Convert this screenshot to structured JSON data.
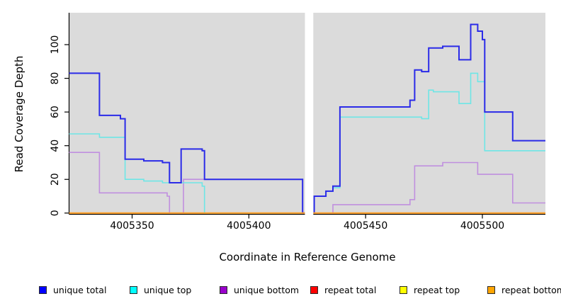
{
  "figure": {
    "x_axis_title": "Coordinate in Reference Genome",
    "y_axis_title": "Read Coverage Depth"
  },
  "legend": {
    "position": "bottom",
    "items": [
      {
        "label": "unique total",
        "color": "#0000FF"
      },
      {
        "label": "unique top",
        "color": "#00FFFF"
      },
      {
        "label": "unique bottom",
        "color": "#9900CC"
      },
      {
        "label": "repeat total",
        "color": "#FF0000"
      },
      {
        "label": "repeat top",
        "color": "#FFFF00"
      },
      {
        "label": "repeat bottom",
        "color": "#FFA500"
      }
    ]
  },
  "chart_data": {
    "type": "line",
    "subtype": "step",
    "title": "",
    "xlabel": "Coordinate in Reference Genome",
    "ylabel": "Read Coverage Depth",
    "xlim": [
      4005323,
      4005527
    ],
    "ylim": [
      0,
      118.3
    ],
    "x_ticks": [
      4005350,
      4005400,
      4005450,
      4005500
    ],
    "x_tick_labels": [
      "4005350",
      "4005400",
      "4005450",
      "4005500"
    ],
    "y_ticks": [
      0,
      20,
      40,
      60,
      80,
      100
    ],
    "y_tick_labels": [
      "0",
      "20",
      "40",
      "60",
      "80",
      "100"
    ],
    "plot_background": "#DBDBDB",
    "grid": false,
    "no_data_gap": {
      "from": 4005424,
      "to": 4005427.6
    },
    "series": [
      {
        "name": "unique total",
        "line_color": "#2B2BE8",
        "start_value": 83,
        "steps": [
          [
            4005336,
            58
          ],
          [
            4005345,
            56
          ],
          [
            4005347,
            32
          ],
          [
            4005355,
            31
          ],
          [
            4005363,
            30
          ],
          [
            4005366,
            18
          ],
          [
            4005371,
            38
          ],
          [
            4005380,
            37
          ],
          [
            4005381,
            20
          ],
          [
            4005423,
            0
          ],
          [
            4005428,
            10
          ],
          [
            4005433,
            13
          ],
          [
            4005436,
            16
          ],
          [
            4005439,
            63
          ],
          [
            4005469,
            67
          ],
          [
            4005471,
            85
          ],
          [
            4005474,
            84
          ],
          [
            4005477,
            98
          ],
          [
            4005483,
            99
          ],
          [
            4005490,
            91
          ],
          [
            4005495,
            112
          ],
          [
            4005498,
            108
          ],
          [
            4005500,
            103
          ],
          [
            4005501,
            60
          ],
          [
            4005513,
            43
          ]
        ]
      },
      {
        "name": "unique top",
        "line_color": "#6EE6E6",
        "start_value": 47,
        "steps": [
          [
            4005336,
            45
          ],
          [
            4005347,
            20
          ],
          [
            4005355,
            19
          ],
          [
            4005363,
            18
          ],
          [
            4005380,
            16
          ],
          [
            4005381,
            0
          ],
          [
            4005428,
            10
          ],
          [
            4005433,
            13
          ],
          [
            4005436,
            15
          ],
          [
            4005439,
            57
          ],
          [
            4005474,
            56
          ],
          [
            4005477,
            73
          ],
          [
            4005479,
            72
          ],
          [
            4005490,
            65
          ],
          [
            4005495,
            83
          ],
          [
            4005498,
            78
          ],
          [
            4005501,
            37
          ]
        ]
      },
      {
        "name": "unique bottom",
        "line_color": "#C08FDF",
        "start_value": 36,
        "steps": [
          [
            4005336,
            12
          ],
          [
            4005365,
            10
          ],
          [
            4005366,
            0
          ],
          [
            4005372,
            20
          ],
          [
            4005423,
            0
          ],
          [
            4005436,
            5
          ],
          [
            4005469,
            8
          ],
          [
            4005471,
            28
          ],
          [
            4005483,
            30
          ],
          [
            4005498,
            23
          ],
          [
            4005513,
            6
          ]
        ]
      },
      {
        "name": "repeat total",
        "line_color": "#E00000",
        "start_value": 0,
        "steps": []
      },
      {
        "name": "repeat top",
        "line_color": "#F0F000",
        "start_value": 0,
        "steps": []
      },
      {
        "name": "repeat bottom",
        "line_color": "#FF9E24",
        "start_value": 0,
        "steps": []
      }
    ]
  }
}
